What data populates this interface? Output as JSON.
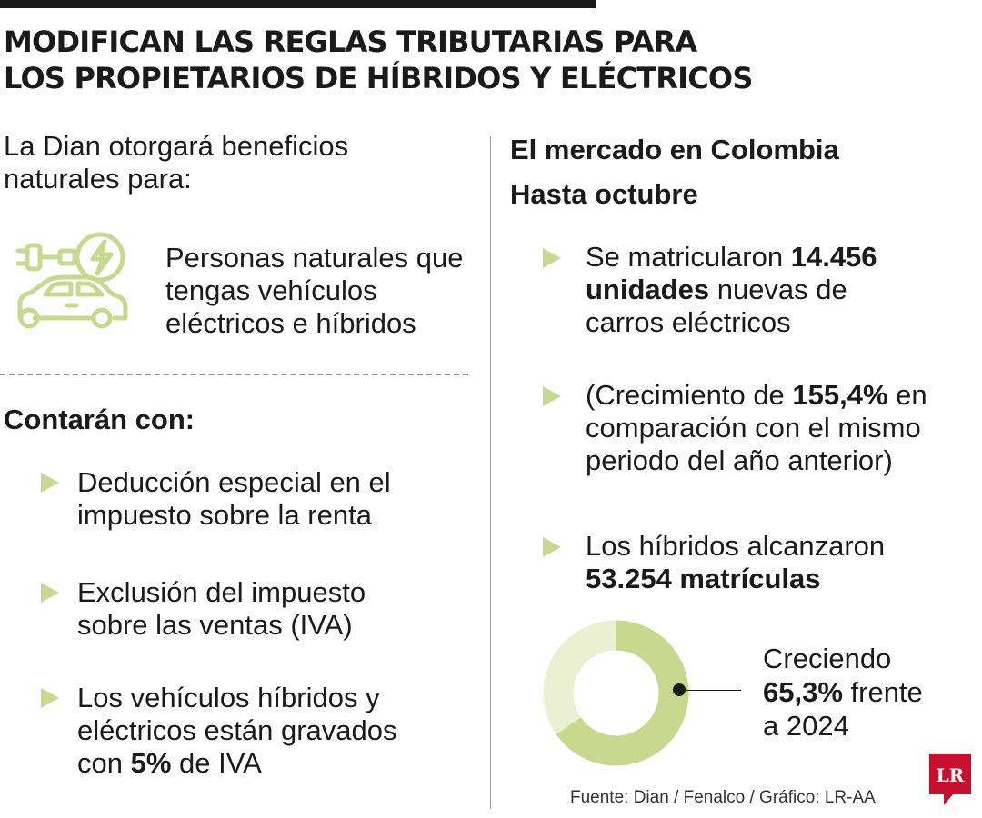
{
  "title": {
    "line1": "MODIFICAN LAS REGLAS TRIBUTARIAS PARA",
    "line2": "LOS PROPIETARIOS DE HÍBRIDOS Y ELÉCTRICOS"
  },
  "left": {
    "intro": "La Dian otorgará beneficios naturales para:",
    "icon": "electric-car-plug-icon",
    "icon_text": "Personas naturales que tengas vehículos eléctricos e híbridos",
    "section_heading": "Contarán con:",
    "bullets": [
      {
        "line1": "Deducción especial en el",
        "line2": "impuesto sobre la renta"
      },
      {
        "line1": "Exclusión del impuesto",
        "line2": "sobre las ventas (IVA)"
      },
      {
        "line1": "Los vehículos híbridos y",
        "line2": "eléctricos están gravados",
        "line3_pre": "con ",
        "line3_bold": "5%",
        "line3_post": " de IVA"
      }
    ]
  },
  "right": {
    "heading1": "El mercado en Colombia",
    "heading2": "Hasta octubre",
    "bullet1": {
      "pre": "Se matricularon ",
      "bold1": "14.456",
      "bold2": "unidades",
      "post1": " nuevas de",
      "line3": "carros eléctricos"
    },
    "bullet2": {
      "pre": "(Crecimiento de ",
      "bold": "155,4%",
      "post": " en",
      "line2": "comparación con el mismo",
      "line3": "periodo del año anterior)"
    },
    "bullet3": {
      "line1": "Los híbridos alcanzaron",
      "bold": "53.254 matrículas"
    },
    "donut": {
      "line1": "Creciendo",
      "bold": "65,3%",
      "post": " frente",
      "line3": "a 2024",
      "growth_fraction": 0.653
    }
  },
  "source": "Fuente: Dian / Fenalco / Gráfico: LR-AA",
  "logo": "LR",
  "colors": {
    "accent": "#c6d98e",
    "accent_light": "#ebf0d3",
    "text": "#1a1a1a",
    "logo_red": "#c8102e"
  }
}
